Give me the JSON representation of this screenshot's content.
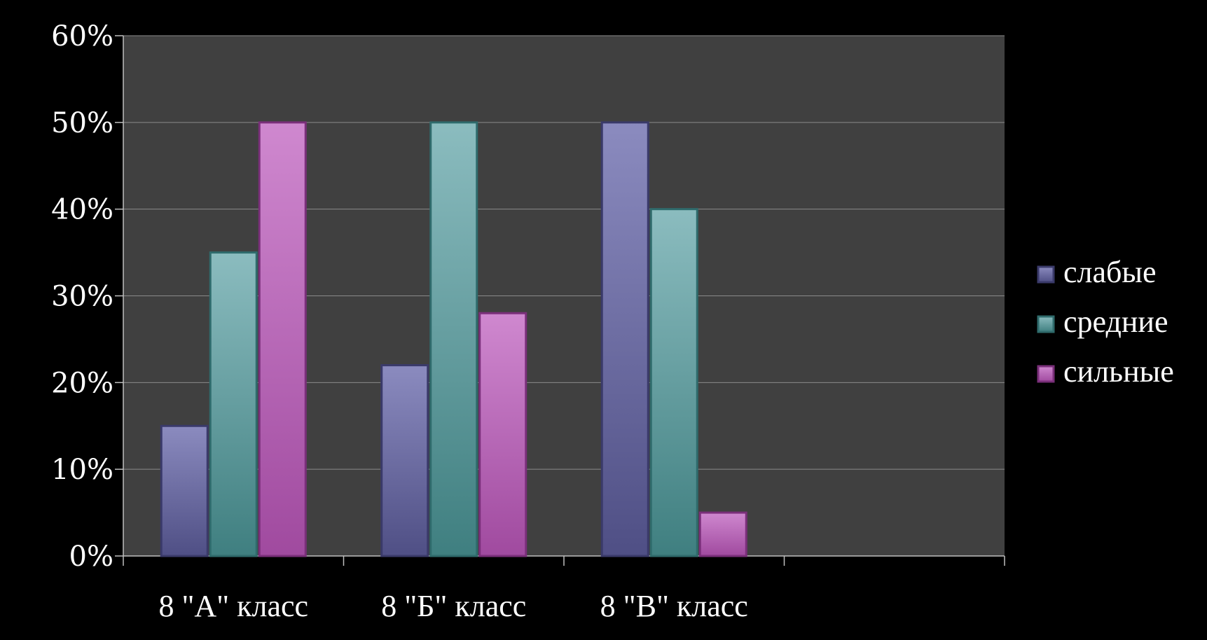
{
  "chart_data": {
    "type": "bar",
    "title": "",
    "xlabel": "",
    "ylabel": "",
    "categories": [
      "8 \"А\" класс",
      "8 \"Б\" класс",
      "8 \"В\" класс"
    ],
    "series": [
      {
        "name": "слабые",
        "values": [
          0.15,
          0.22,
          0.5
        ],
        "color_top": "#8b8bbf",
        "color_bottom": "#4f4f85",
        "border": "#3a3a6a"
      },
      {
        "name": "средние",
        "values": [
          0.35,
          0.5,
          0.4
        ],
        "color_top": "#8bbcbf",
        "color_bottom": "#3f7f80",
        "border": "#2f6b6c"
      },
      {
        "name": "сильные",
        "values": [
          0.5,
          0.28,
          0.05
        ],
        "color_top": "#cf88cf",
        "color_bottom": "#a04a9f",
        "border": "#7a2f7a"
      }
    ],
    "ylim": [
      0,
      0.6
    ],
    "yticks": [
      "0%",
      "10%",
      "20%",
      "30%",
      "40%",
      "50%",
      "60%"
    ],
    "grid": true,
    "legend_position": "right",
    "plot_background": "#404040",
    "page_background": "#000000"
  }
}
